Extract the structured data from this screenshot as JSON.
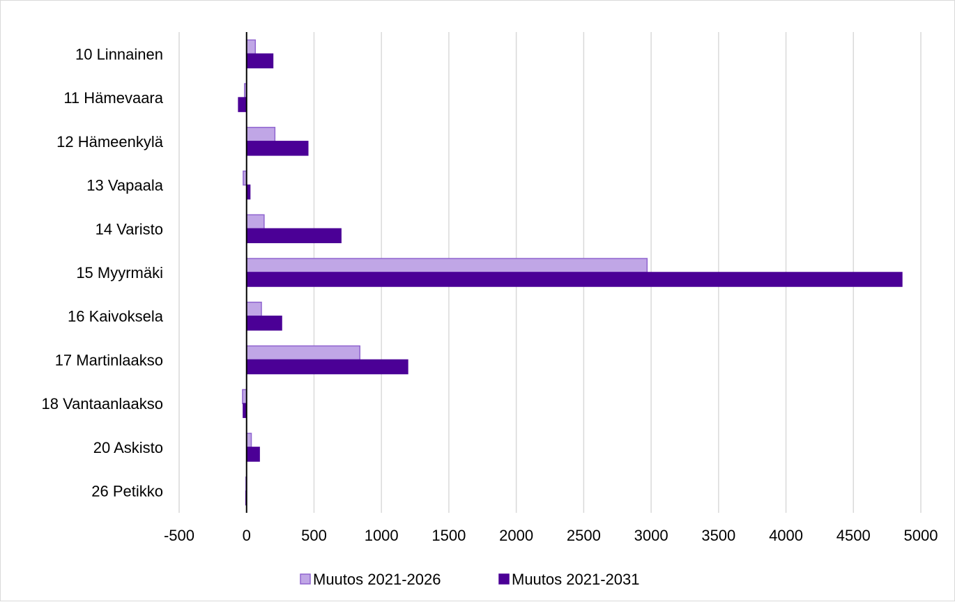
{
  "chart_data": {
    "type": "bar",
    "orientation": "horizontal",
    "categories": [
      "10 Linnainen",
      "11 Hämevaara",
      "12 Hämeenkylä",
      "13 Vapaala",
      "14 Varisto",
      "15 Myyrmäki",
      "16 Kaivoksela",
      "17 Martinlaakso",
      "18 Vantaanlaakso",
      "20 Askisto",
      "26 Petikko"
    ],
    "series": [
      {
        "name": "Muutos 2021-2026",
        "color": "#c0a6e6",
        "stroke": "#8f64cf",
        "values": [
          65,
          -15,
          210,
          -25,
          130,
          2970,
          110,
          840,
          -30,
          35,
          -5
        ]
      },
      {
        "name": "Muutos 2021-2031",
        "color": "#4b0096",
        "stroke": "#4b0096",
        "values": [
          195,
          -60,
          455,
          25,
          700,
          4860,
          260,
          1195,
          -25,
          95,
          -5
        ]
      }
    ],
    "xlim": [
      -500,
      5000
    ],
    "xticks": [
      "-500",
      "0",
      "500",
      "1000",
      "1500",
      "2000",
      "2500",
      "3000",
      "3500",
      "4000",
      "4500",
      "5000"
    ],
    "grid": "vertical",
    "legend_position": "bottom",
    "title": "",
    "xlabel": "",
    "ylabel": ""
  }
}
